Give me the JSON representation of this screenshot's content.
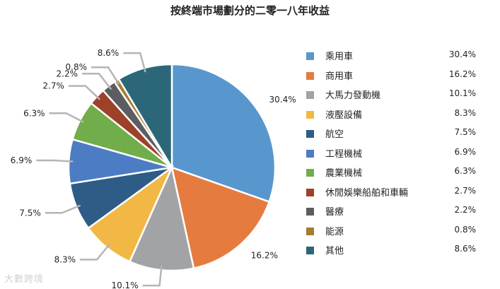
{
  "watermark": "大數跨境",
  "chart_data": {
    "type": "pie",
    "title": "按終端市場劃分的二零一八年收益",
    "legend_position": "right",
    "slices": [
      {
        "name": "乘用車",
        "value": 30.4,
        "label": "30.4%",
        "color": "#5797cd"
      },
      {
        "name": "商用車",
        "value": 16.2,
        "label": "16.2%",
        "color": "#e67b3f"
      },
      {
        "name": "大馬力發動機",
        "value": 10.1,
        "label": "10.1%",
        "color": "#a2a3a5"
      },
      {
        "name": "液壓設備",
        "value": 8.3,
        "label": "8.3%",
        "color": "#f2b845"
      },
      {
        "name": "航空",
        "value": 7.5,
        "label": "7.5%",
        "color": "#2e5c87"
      },
      {
        "name": "工程機械",
        "value": 6.9,
        "label": "6.9%",
        "color": "#4c7cc3"
      },
      {
        "name": "農業機械",
        "value": 6.3,
        "label": "6.3%",
        "color": "#71ad4b"
      },
      {
        "name": "休閒娛樂船舶和車輛",
        "value": 2.7,
        "label": "2.7%",
        "color": "#9d4129"
      },
      {
        "name": "醫療",
        "value": 2.2,
        "label": "2.2%",
        "color": "#5c5d60"
      },
      {
        "name": "能源",
        "value": 0.8,
        "label": "0.8%",
        "color": "#a47d30"
      },
      {
        "name": "其他",
        "value": 8.6,
        "label": "8.6%",
        "color": "#2b6778"
      }
    ]
  }
}
